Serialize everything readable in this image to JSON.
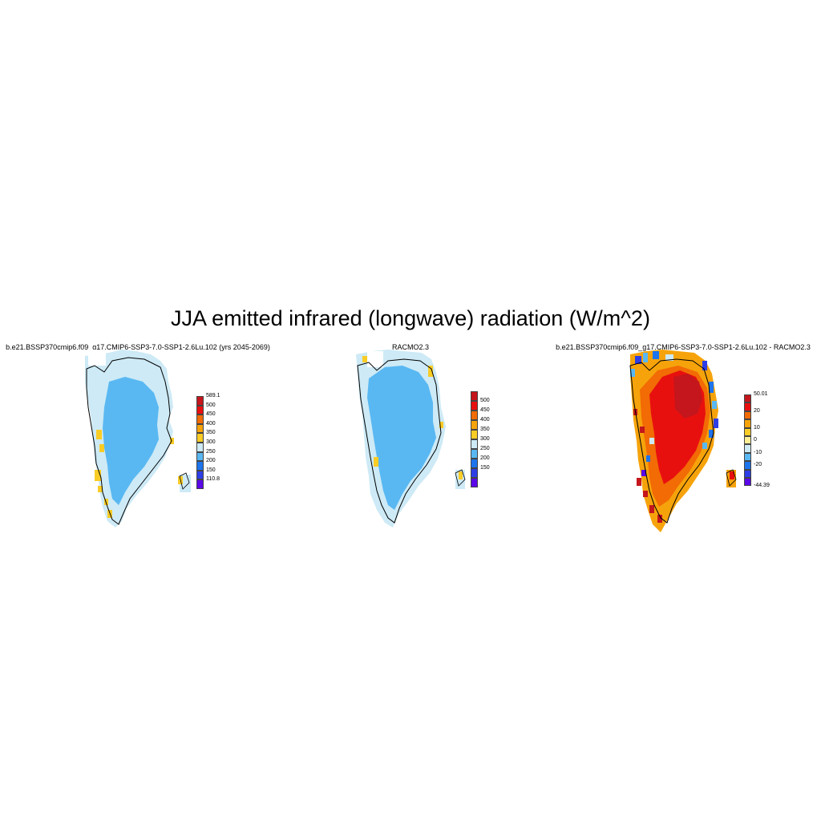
{
  "title": "JJA emitted infrared (longwave) radiation (W/m^2)",
  "panels": [
    {
      "name": "model",
      "title": "b.e21.BSSP370cmip6.f09_g17.CMIP6-SSP3-7.0-SSP1-2.6Lu.102 (yrs 2045-2069)",
      "colorbar": {
        "labels": [
          "589.1",
          "500",
          "450",
          "400",
          "350",
          "300",
          "250",
          "200",
          "150",
          "110.8"
        ],
        "colors": [
          "#c4161c",
          "#e8100f",
          "#f26b04",
          "#f6a30b",
          "#f9cc26",
          "#cdeaf6",
          "#59b8f2",
          "#1e74ec",
          "#2d3ee6",
          "#5b08e8"
        ]
      }
    },
    {
      "name": "racmo",
      "title": "RACMO2.3",
      "colorbar": {
        "labels": [
          "500",
          "450",
          "400",
          "350",
          "300",
          "250",
          "200",
          "150"
        ],
        "colors": [
          "#c4161c",
          "#e8100f",
          "#f26b04",
          "#f6a30b",
          "#f9cc26",
          "#cdeaf6",
          "#59b8f2",
          "#1e74ec",
          "#2d3ee6",
          "#5b08e8"
        ]
      }
    },
    {
      "name": "difference",
      "title": "b.e21.BSSP370cmip6.f09_g17.CMIP6-SSP3-7.0-SSP1-2.6Lu.102 - RACMO2.3",
      "colorbar": {
        "labels": [
          "50.01",
          "20",
          "10",
          "0",
          "-10",
          "-20",
          "-44.39"
        ],
        "colors": [
          "#c4161c",
          "#e8100f",
          "#f26b04",
          "#f6a30b",
          "#f9cc26",
          "#fbee95",
          "#cdeaf6",
          "#59b8f2",
          "#1e74ec",
          "#2d3ee6",
          "#5b08e8"
        ]
      }
    }
  ]
}
